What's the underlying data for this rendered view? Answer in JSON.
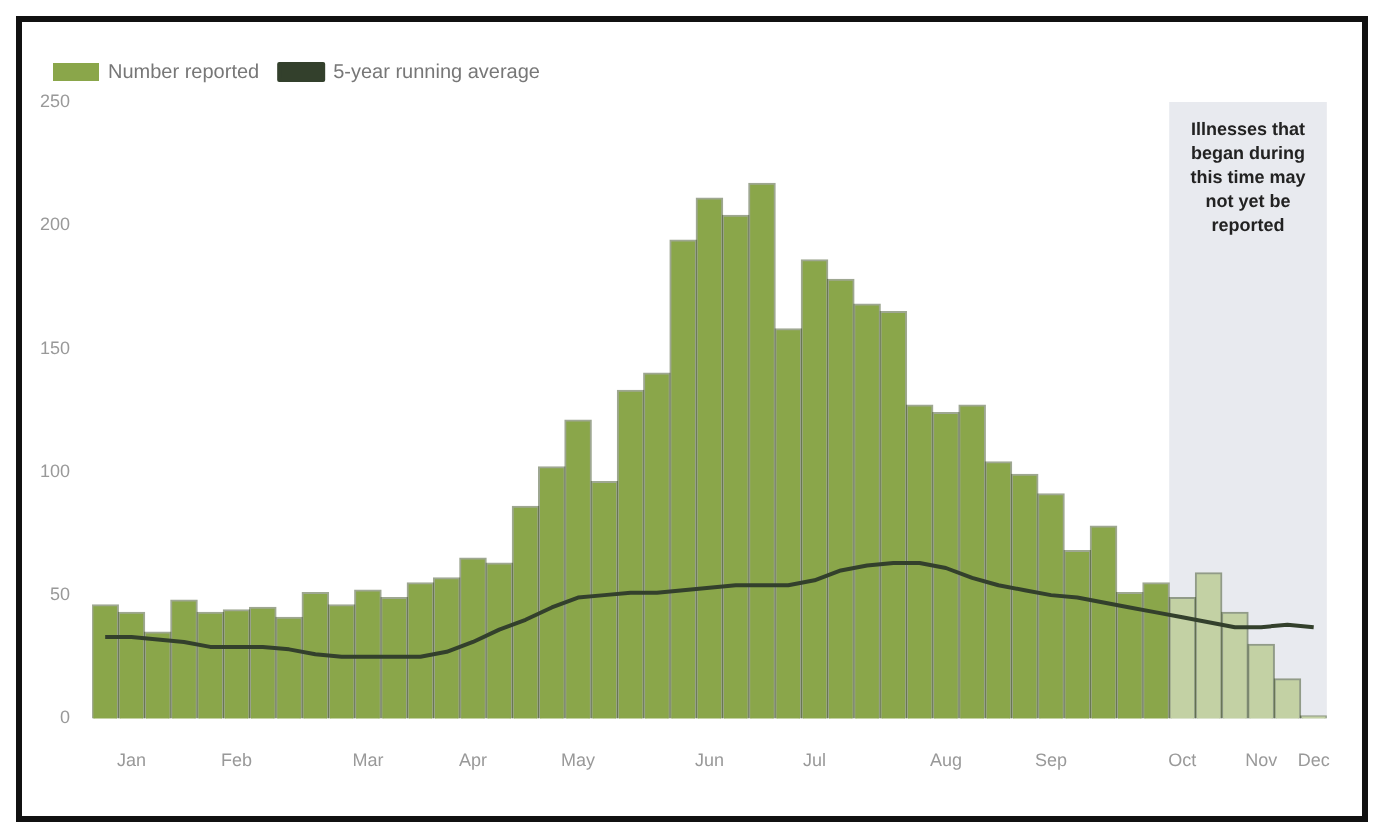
{
  "chart_data": {
    "type": "bar",
    "categories": [
      null,
      "Jan",
      null,
      null,
      null,
      "Feb",
      null,
      null,
      null,
      null,
      "Mar",
      null,
      null,
      null,
      "Apr",
      null,
      null,
      null,
      "May",
      null,
      null,
      null,
      null,
      "Jun",
      null,
      null,
      null,
      "Jul",
      null,
      null,
      null,
      null,
      "Aug",
      null,
      null,
      null,
      "Sep",
      null,
      null,
      null,
      null,
      "Oct",
      null,
      null,
      "Nov",
      null,
      "Dec"
    ],
    "series": [
      {
        "name": "Number reported",
        "color": "#8aa64a",
        "values": [
          46,
          43,
          35,
          48,
          43,
          44,
          45,
          41,
          51,
          46,
          52,
          49,
          55,
          57,
          65,
          63,
          86,
          102,
          121,
          96,
          133,
          140,
          194,
          211,
          204,
          217,
          158,
          186,
          178,
          168,
          165,
          127,
          124,
          127,
          104,
          99,
          91,
          68,
          78,
          51,
          55,
          49,
          59,
          43,
          30,
          16,
          1
        ],
        "colors": [
          "#8aa64a",
          "#8aa64a",
          "#8aa64a",
          "#8aa64a",
          "#8aa64a",
          "#8aa64a",
          "#8aa64a",
          "#8aa64a",
          "#8aa64a",
          "#8aa64a",
          "#8aa64a",
          "#8aa64a",
          "#8aa64a",
          "#8aa64a",
          "#8aa64a",
          "#8aa64a",
          "#8aa64a",
          "#8aa64a",
          "#8aa64a",
          "#8aa64a",
          "#8aa64a",
          "#8aa64a",
          "#8aa64a",
          "#8aa64a",
          "#8aa64a",
          "#8aa64a",
          "#8aa64a",
          "#8aa64a",
          "#8aa64a",
          "#8aa64a",
          "#8aa64a",
          "#8aa64a",
          "#8aa64a",
          "#8aa64a",
          "#8aa64a",
          "#8aa64a",
          "#8aa64a",
          "#8aa64a",
          "#8aa64a",
          "#8aa64a",
          "#8aa64a",
          "#c3d1a4",
          "#c3d1a4",
          "#c3d1a4",
          "#c3d1a4",
          "#c3d1a4",
          "#c3d1a4"
        ]
      },
      {
        "name": "5-year running average",
        "type": "line",
        "color": "#33402c",
        "values": [
          33,
          33,
          32,
          31,
          29,
          29,
          29,
          28,
          26,
          25,
          25,
          25,
          25,
          27,
          31,
          36,
          40,
          45,
          49,
          50,
          51,
          51,
          52,
          53,
          54,
          54,
          54,
          56,
          60,
          62,
          63,
          63,
          61,
          57,
          54,
          52,
          50,
          49,
          47,
          45,
          43,
          41,
          39,
          37,
          37,
          38,
          37
        ]
      }
    ],
    "ylim": [
      0,
      250
    ],
    "yticks": [
      0,
      50,
      100,
      150,
      200,
      250
    ],
    "grid": false,
    "legend": "top left",
    "bands": [
      {
        "axis": "x",
        "from": "Oct",
        "to": "Dec",
        "label": "Illnesses that began during this time may not yet be reported",
        "color": "#e8eaef"
      }
    ]
  }
}
